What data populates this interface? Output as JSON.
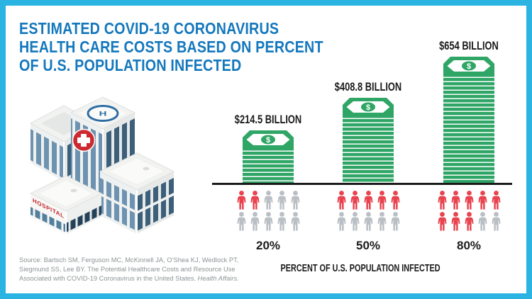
{
  "colors": {
    "border_cyan": "#2bb4e2",
    "title_blue": "#1478bd",
    "money_green": "#2fa566",
    "person_red": "#e8434e",
    "person_gray": "#b9bfc4",
    "text_black": "#1b1b1b",
    "source_gray": "#8e9396",
    "hospital_cross_red": "#cc2a31",
    "helipad_blue": "#2e6da4"
  },
  "title": {
    "lines": [
      "ESTIMATED COVID-19 CORONAVIRUS",
      "HEALTH CARE COSTS BASED ON PERCENT",
      "OF U.S. POPULATION INFECTED"
    ]
  },
  "hospital": {
    "sign": "HOSPITAL",
    "helipad_letter": "H"
  },
  "icons": {
    "dollar": "$"
  },
  "chart_data": {
    "type": "bar",
    "title": "ESTIMATED COVID-19 CORONAVIRUS HEALTH CARE COSTS BASED ON PERCENT OF U.S. POPULATION INFECTED",
    "xlabel": "PERCENT OF U.S. POPULATION INFECTED",
    "categories": [
      "20%",
      "50%",
      "80%"
    ],
    "series": [
      {
        "name": "Estimated health care cost",
        "unit": "billion USD",
        "values": [
          214.5,
          408.8,
          654
        ]
      }
    ],
    "value_labels": [
      "$214.5 BILLION",
      "$408.8 BILLION",
      "$654 BILLION"
    ],
    "pictogram": {
      "icons_per_group": 10,
      "highlighted_per_group": [
        2,
        5,
        8
      ],
      "meaning": "each icon = 10% of U.S. population"
    },
    "bar_style": "stack of banknotes",
    "grid": false,
    "legend": false
  },
  "source": {
    "line1": "Source: Bartsch SM, Ferguson MC, McKinnell JA, O’Shea KJ, Wedlock PT,",
    "line2": "Siegmund SS, Lee BY. The Potential Healthcare Costs and Resource Use",
    "line3_regular": "Associated with COVID-19 Coronavirus in the United States. ",
    "line3_italic": "Health Affairs."
  }
}
